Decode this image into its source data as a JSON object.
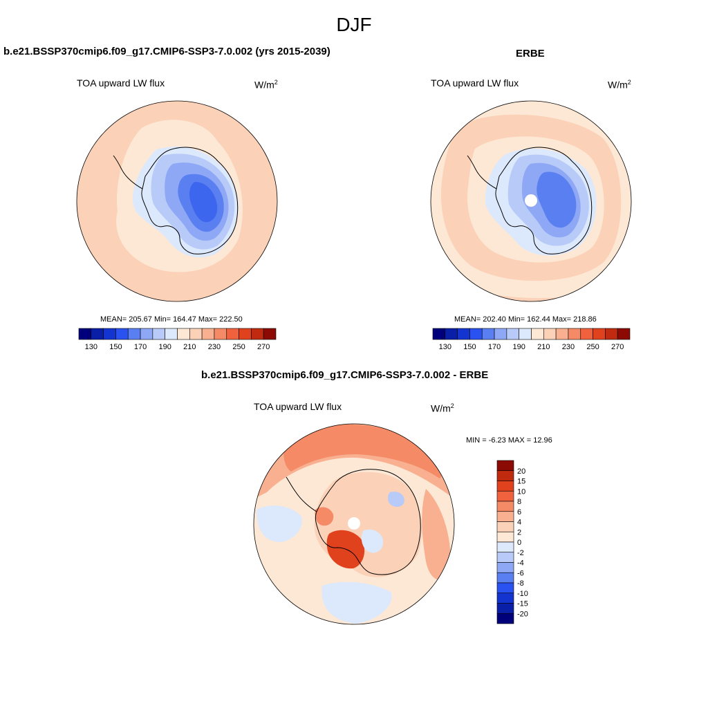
{
  "season": "DJF",
  "panels": {
    "model": {
      "title": "b.e21.BSSP370cmip6.f09_g17.CMIP6-SSP3-7.0.002 (yrs 2015-2039)",
      "variable": "TOA upward LW flux",
      "units_base": "W/m",
      "units_exp": "2",
      "stats": "MEAN= 205.67  Min= 164.47  Max= 222.50"
    },
    "obs": {
      "title": "ERBE",
      "variable": "TOA upward LW flux",
      "units_base": "W/m",
      "units_exp": "2",
      "stats": "MEAN= 202.40  Min= 162.44  Max= 218.86"
    },
    "diff": {
      "title": "b.e21.BSSP370cmip6.f09_g17.CMIP6-SSP3-7.0.002 - ERBE",
      "variable": "TOA upward LW flux",
      "units_base": "W/m",
      "units_exp": "2",
      "stats": "MIN =  -6.23 MAX =  12.96"
    }
  },
  "colorbar_abs": {
    "colors": [
      "#00007a",
      "#0a1fa8",
      "#1434cf",
      "#2a52f0",
      "#5a7ff0",
      "#8fa8f5",
      "#b8cbf8",
      "#dce8fb",
      "#fde8d6",
      "#fbd1b8",
      "#f8b090",
      "#f58a66",
      "#f0623e",
      "#e0421e",
      "#c02a0e",
      "#8c0a04"
    ],
    "tick_labels": [
      "130",
      "150",
      "170",
      "190",
      "210",
      "230",
      "250",
      "270"
    ]
  },
  "colorbar_diff": {
    "colors": [
      "#00007a",
      "#0a1fa8",
      "#1434cf",
      "#2a52f0",
      "#5a7ff0",
      "#8fa8f5",
      "#b8cbf8",
      "#dce8fb",
      "#fde8d6",
      "#fbd1b8",
      "#f8b090",
      "#f58a66",
      "#f0623e",
      "#e0421e",
      "#c02a0e",
      "#8c0a04"
    ],
    "tick_labels": [
      "20",
      "15",
      "10",
      "8",
      "6",
      "4",
      "2",
      "0",
      "-2",
      "-4",
      "-6",
      "-8",
      "-10",
      "-15",
      "-20"
    ]
  },
  "field_colors": {
    "ocean_warm": "#fbd1b8",
    "ocean_light": "#fde8d6",
    "ice_1": "#dce8fb",
    "ice_2": "#b8cbf8",
    "ice_3": "#8fa8f5",
    "ice_4": "#5a7ff0",
    "ice_5": "#3d66ee",
    "diff_base": "#fde8d6",
    "diff_pos1": "#fbd1b8",
    "diff_pos2": "#f8b090",
    "diff_pos3": "#f58a66",
    "diff_pos4": "#e0421e",
    "diff_neg1": "#dce8fb",
    "diff_neg2": "#b8cbf8"
  }
}
